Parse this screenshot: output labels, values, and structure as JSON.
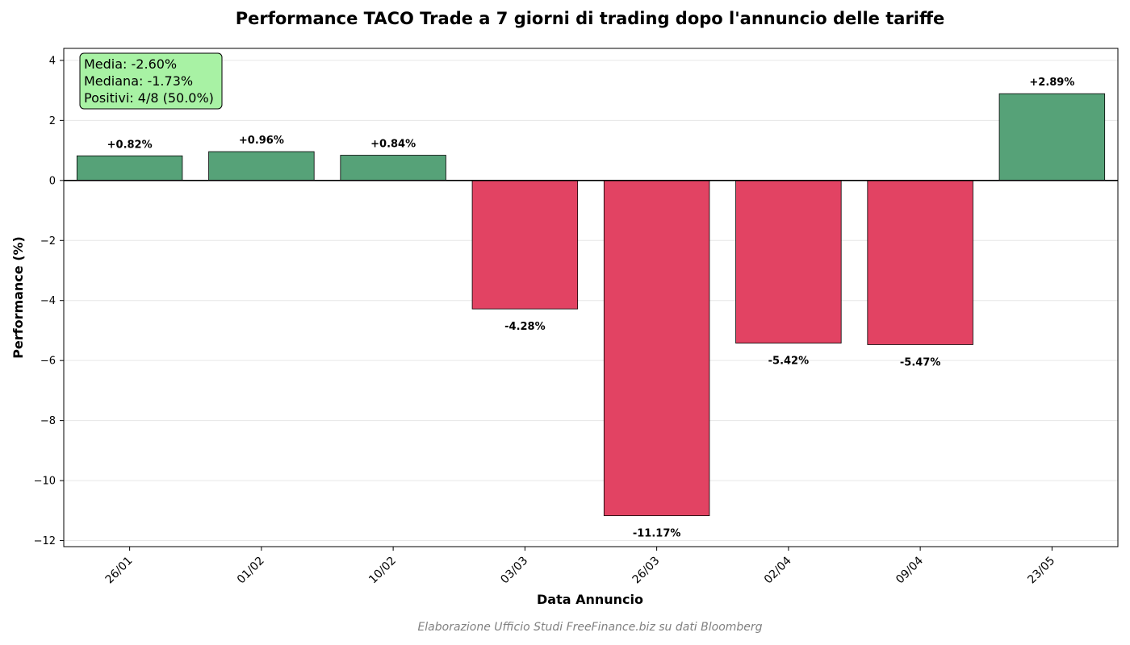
{
  "chart_data": {
    "type": "bar",
    "title": "Performance TACO Trade a 7 giorni di trading dopo l'annuncio delle tariffe",
    "xlabel": "Data Annuncio",
    "ylabel": "Performance (%)",
    "categories": [
      "26/01",
      "01/02",
      "10/02",
      "03/03",
      "26/03",
      "02/04",
      "09/04",
      "23/05"
    ],
    "values": [
      0.82,
      0.96,
      0.84,
      -4.28,
      -11.17,
      -5.42,
      -5.47,
      2.89
    ],
    "data_labels": [
      "+0.82%",
      "+0.96%",
      "+0.84%",
      "-4.28%",
      "-11.17%",
      "-5.42%",
      "-5.47%",
      "+2.89%"
    ],
    "ylim": [
      -12.2,
      4.4
    ],
    "yticks": [
      4,
      2,
      0,
      -2,
      -4,
      -6,
      -8,
      -10,
      -12
    ],
    "ytick_labels": [
      "4",
      "2",
      "0",
      "−2",
      "−4",
      "−6",
      "−8",
      "−10",
      "−12"
    ],
    "grid": "y",
    "colors": {
      "positive": "#56a278",
      "negative": "#e24363",
      "stats_box": "#a8f2a4"
    },
    "stats_box": {
      "placement": "top-left",
      "lines": [
        "Media: -2.60%",
        "Mediana: -1.73%",
        "Positivi: 4/8 (50.0%)"
      ]
    },
    "source": "Elaborazione Ufficio Studi FreeFinance.biz su dati Bloomberg"
  }
}
